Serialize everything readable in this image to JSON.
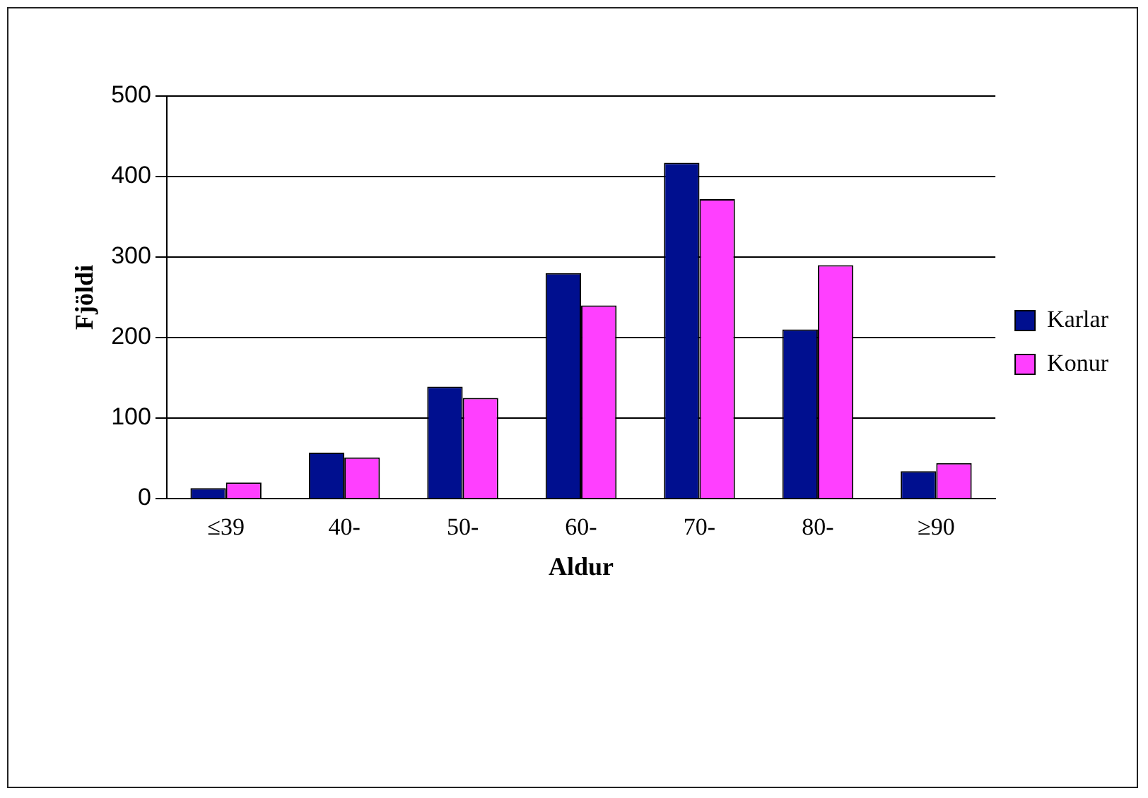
{
  "chart_data": {
    "type": "bar",
    "xlabel": "Aldur",
    "ylabel": "Fjöldi",
    "categories": [
      "≤39",
      "40-",
      "50-",
      "60-",
      "70-",
      "80-",
      "≥90"
    ],
    "series": [
      {
        "name": "Karlar",
        "color": "#000f8f",
        "values": [
          13,
          57,
          139,
          280,
          417,
          210,
          34
        ]
      },
      {
        "name": "Konur",
        "color": "#ff3fff",
        "values": [
          20,
          51,
          125,
          240,
          372,
          290,
          44
        ]
      }
    ],
    "ylim": [
      0,
      500
    ],
    "yticks": [
      0,
      100,
      200,
      300,
      400,
      500
    ],
    "grid": "y",
    "legend": "right"
  }
}
